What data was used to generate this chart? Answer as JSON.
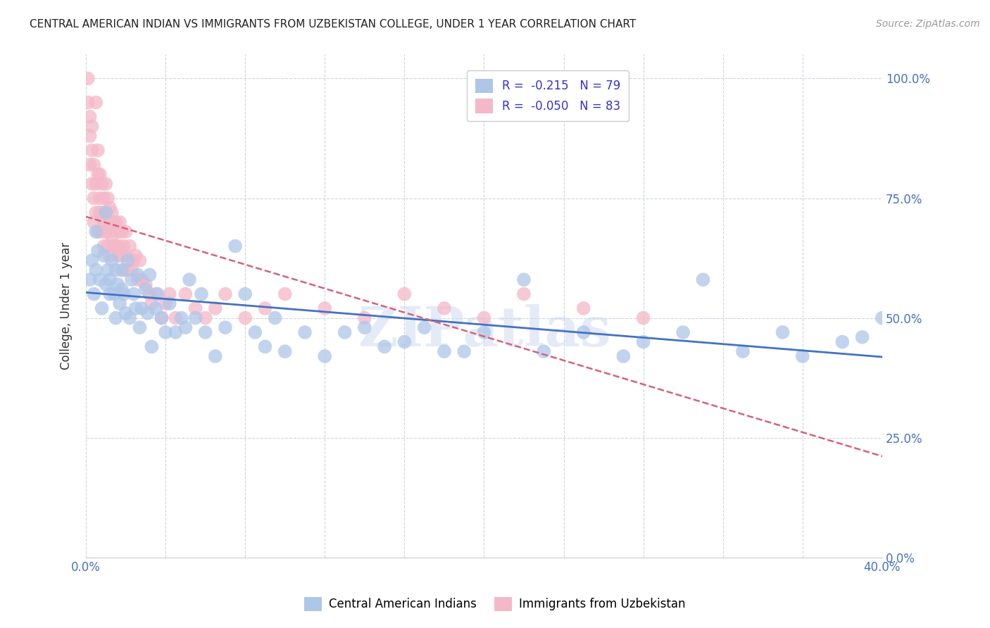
{
  "title": "CENTRAL AMERICAN INDIAN VS IMMIGRANTS FROM UZBEKISTAN COLLEGE, UNDER 1 YEAR CORRELATION CHART",
  "source": "Source: ZipAtlas.com",
  "ylabel": "College, Under 1 year",
  "legend_label1": "Central American Indians",
  "legend_label2": "Immigrants from Uzbekistan",
  "R_blue": -0.215,
  "N_blue": 79,
  "R_pink": -0.05,
  "N_pink": 83,
  "blue_color": "#aec6e8",
  "pink_color": "#f4b8c8",
  "blue_line_color": "#4472c4",
  "pink_line_color": "#d4637a",
  "watermark": "ZIPatlas",
  "xlim": [
    0.0,
    0.4
  ],
  "ylim": [
    0.0,
    1.05
  ],
  "blue_scatter_x": [
    0.002,
    0.003,
    0.004,
    0.005,
    0.005,
    0.006,
    0.007,
    0.008,
    0.009,
    0.01,
    0.01,
    0.011,
    0.012,
    0.012,
    0.013,
    0.014,
    0.015,
    0.015,
    0.016,
    0.017,
    0.018,
    0.018,
    0.019,
    0.02,
    0.021,
    0.022,
    0.023,
    0.024,
    0.025,
    0.026,
    0.027,
    0.028,
    0.03,
    0.031,
    0.032,
    0.033,
    0.035,
    0.036,
    0.038,
    0.04,
    0.042,
    0.045,
    0.048,
    0.05,
    0.052,
    0.055,
    0.058,
    0.06,
    0.065,
    0.07,
    0.075,
    0.08,
    0.085,
    0.09,
    0.095,
    0.1,
    0.11,
    0.12,
    0.13,
    0.14,
    0.15,
    0.16,
    0.17,
    0.18,
    0.19,
    0.2,
    0.22,
    0.23,
    0.25,
    0.27,
    0.28,
    0.3,
    0.31,
    0.33,
    0.35,
    0.36,
    0.38,
    0.39,
    0.4
  ],
  "blue_scatter_y": [
    0.58,
    0.62,
    0.55,
    0.68,
    0.6,
    0.64,
    0.58,
    0.52,
    0.63,
    0.57,
    0.72,
    0.6,
    0.55,
    0.58,
    0.62,
    0.55,
    0.6,
    0.5,
    0.57,
    0.53,
    0.6,
    0.56,
    0.55,
    0.51,
    0.62,
    0.5,
    0.58,
    0.55,
    0.52,
    0.59,
    0.48,
    0.52,
    0.56,
    0.51,
    0.59,
    0.44,
    0.52,
    0.55,
    0.5,
    0.47,
    0.53,
    0.47,
    0.5,
    0.48,
    0.58,
    0.5,
    0.55,
    0.47,
    0.42,
    0.48,
    0.65,
    0.55,
    0.47,
    0.44,
    0.5,
    0.43,
    0.47,
    0.42,
    0.47,
    0.48,
    0.44,
    0.45,
    0.48,
    0.43,
    0.43,
    0.47,
    0.58,
    0.43,
    0.47,
    0.42,
    0.45,
    0.47,
    0.58,
    0.43,
    0.47,
    0.42,
    0.45,
    0.46,
    0.5
  ],
  "pink_scatter_x": [
    0.001,
    0.001,
    0.002,
    0.002,
    0.002,
    0.003,
    0.003,
    0.003,
    0.004,
    0.004,
    0.004,
    0.005,
    0.005,
    0.005,
    0.006,
    0.006,
    0.006,
    0.007,
    0.007,
    0.007,
    0.008,
    0.008,
    0.008,
    0.009,
    0.009,
    0.009,
    0.01,
    0.01,
    0.01,
    0.011,
    0.011,
    0.011,
    0.012,
    0.012,
    0.012,
    0.013,
    0.013,
    0.014,
    0.014,
    0.015,
    0.015,
    0.016,
    0.016,
    0.017,
    0.017,
    0.018,
    0.018,
    0.019,
    0.019,
    0.02,
    0.02,
    0.021,
    0.022,
    0.023,
    0.024,
    0.025,
    0.026,
    0.027,
    0.028,
    0.03,
    0.032,
    0.033,
    0.035,
    0.038,
    0.04,
    0.042,
    0.045,
    0.05,
    0.055,
    0.06,
    0.065,
    0.07,
    0.08,
    0.09,
    0.1,
    0.12,
    0.14,
    0.16,
    0.18,
    0.2,
    0.22,
    0.25,
    0.28
  ],
  "pink_scatter_y": [
    1.0,
    0.95,
    0.88,
    0.82,
    0.92,
    0.78,
    0.85,
    0.9,
    0.75,
    0.82,
    0.7,
    0.95,
    0.78,
    0.72,
    0.85,
    0.8,
    0.68,
    0.8,
    0.75,
    0.72,
    0.78,
    0.72,
    0.68,
    0.75,
    0.7,
    0.65,
    0.78,
    0.72,
    0.68,
    0.75,
    0.7,
    0.65,
    0.73,
    0.68,
    0.63,
    0.72,
    0.67,
    0.7,
    0.65,
    0.7,
    0.65,
    0.68,
    0.63,
    0.7,
    0.65,
    0.68,
    0.63,
    0.65,
    0.6,
    0.68,
    0.63,
    0.6,
    0.65,
    0.6,
    0.62,
    0.63,
    0.58,
    0.62,
    0.58,
    0.57,
    0.55,
    0.53,
    0.55,
    0.5,
    0.53,
    0.55,
    0.5,
    0.55,
    0.52,
    0.5,
    0.52,
    0.55,
    0.5,
    0.52,
    0.55,
    0.52,
    0.5,
    0.55,
    0.52,
    0.5,
    0.55,
    0.52,
    0.5
  ]
}
